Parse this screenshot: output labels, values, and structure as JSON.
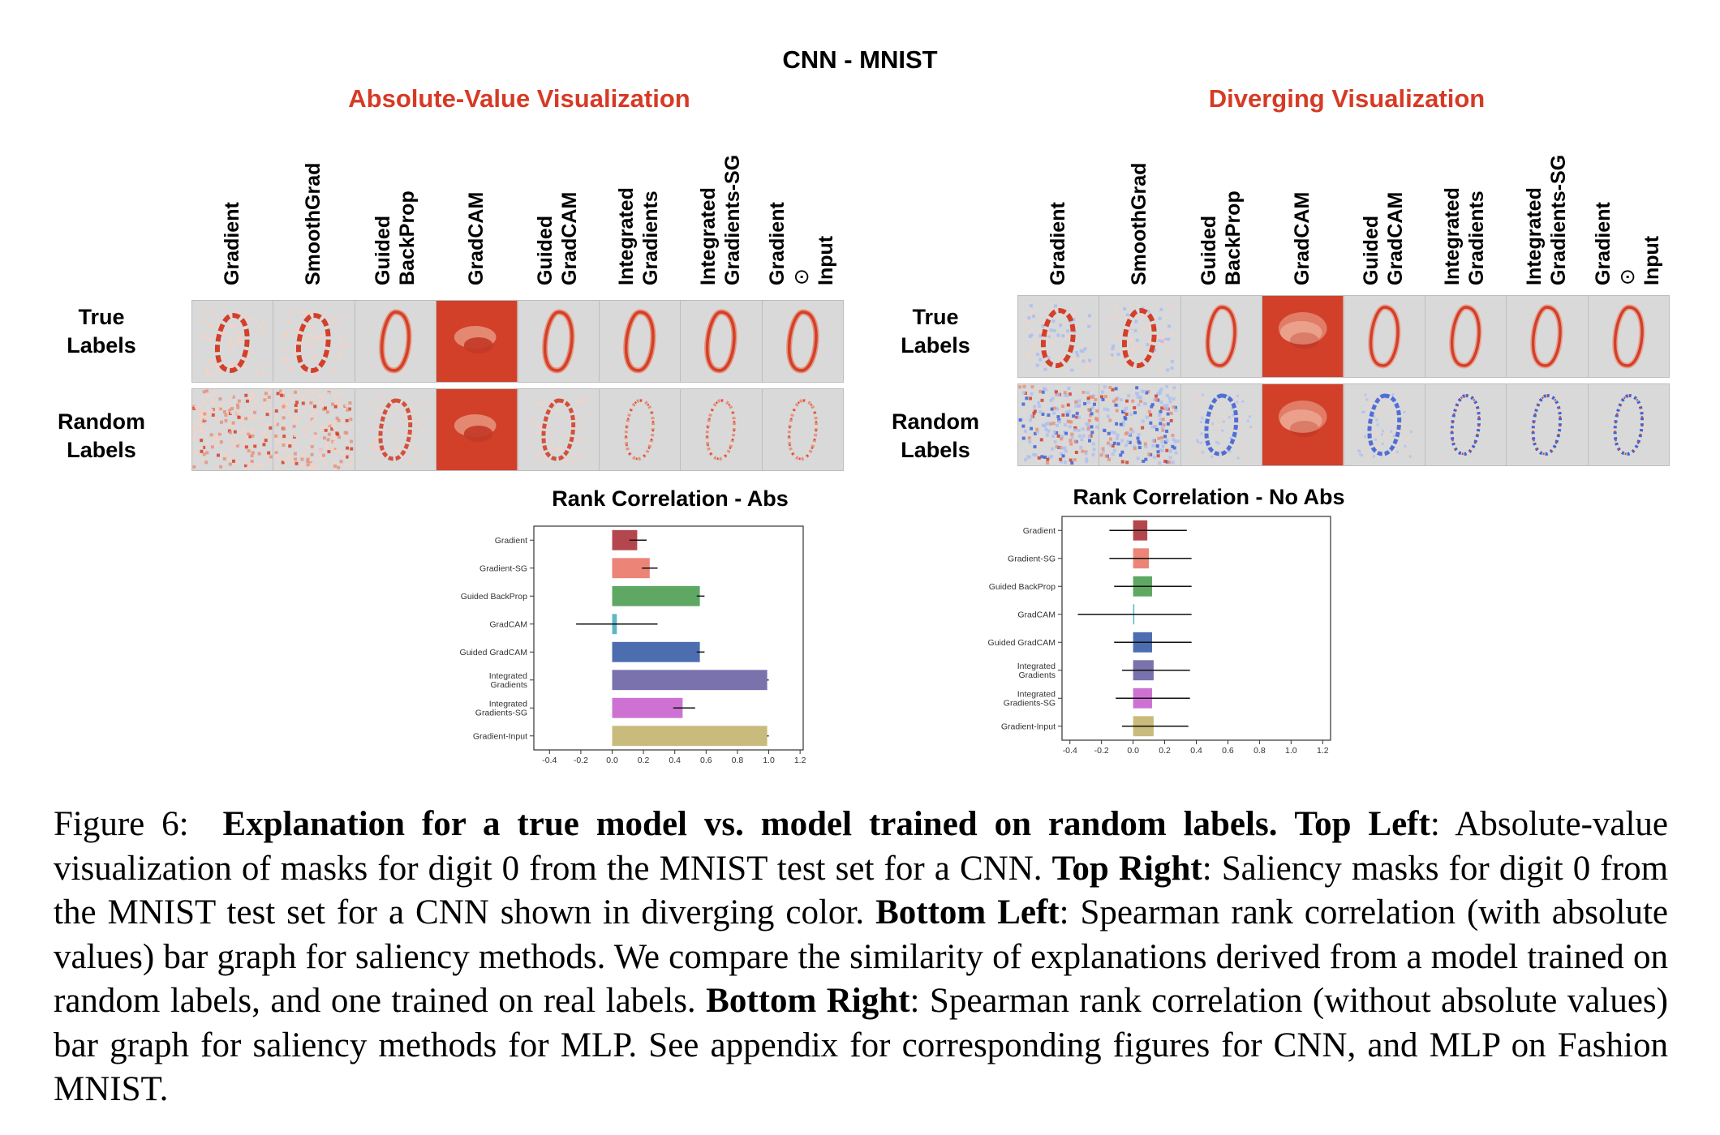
{
  "figure": {
    "main_title": "CNN - MNIST",
    "left_section_title": "Absolute-Value Visualization",
    "right_section_title": "Diverging Visualization",
    "left_columns": [
      [
        "Gradient"
      ],
      [
        "SmoothGrad"
      ],
      [
        "Guided",
        "BackProp"
      ],
      [
        "GradCAM"
      ],
      [
        "Guided",
        "GradCAM"
      ],
      [
        "Integrated",
        "Gradients"
      ],
      [
        "Integrated",
        "Gradients-SG"
      ],
      [
        "Gradient",
        "⊙",
        "Input"
      ]
    ],
    "right_columns": [
      [
        "Gradient"
      ],
      [
        "SmoothGrad"
      ],
      [
        "Guided",
        "BackProp"
      ],
      [
        "GradCAM"
      ],
      [
        "Guided",
        "GradCAM"
      ],
      [
        "Integrated",
        "Gradients"
      ],
      [
        "Integrated",
        "Gradients-SG"
      ],
      [
        "Gradient",
        "⊙",
        "Input"
      ]
    ],
    "rows": [
      [
        "True",
        "Labels"
      ],
      [
        "Random",
        "Labels"
      ]
    ],
    "palette": {
      "red": "#d2402a",
      "mid_red": "#e8917a",
      "light": "#f2d2c6",
      "blue": "#3f63d6",
      "light_blue": "#aebfee"
    }
  },
  "chart_data": [
    {
      "type": "bar",
      "title": "Rank Correlation - Abs",
      "orientation": "horizontal",
      "categories": [
        "Gradient",
        "Gradient-SG",
        "Guided BackProp",
        "GradCAM",
        "Guided GradCAM",
        "Integrated Gradients",
        "Integrated Gradients-SG",
        "Gradient-Input"
      ],
      "category_lines": [
        [
          "Gradient"
        ],
        [
          "Gradient-SG"
        ],
        [
          "Guided BackProp"
        ],
        [
          "GradCAM"
        ],
        [
          "Guided GradCAM"
        ],
        [
          "Integrated",
          "Gradients"
        ],
        [
          "Integrated",
          "Gradients-SG"
        ],
        [
          "Gradient-Input"
        ]
      ],
      "values": [
        0.16,
        0.24,
        0.56,
        0.03,
        0.56,
        0.99,
        0.45,
        0.99
      ],
      "err_low": [
        0.11,
        0.19,
        0.54,
        -0.23,
        0.54,
        0.99,
        0.39,
        0.99
      ],
      "err_high": [
        0.22,
        0.29,
        0.59,
        0.29,
        0.59,
        1.0,
        0.53,
        1.0
      ],
      "colors": [
        "#b4474e",
        "#ec8578",
        "#5ea864",
        "#60b5c5",
        "#4c6db0",
        "#7a72ad",
        "#cd72d3",
        "#c9bb7c"
      ],
      "xlim": [
        -0.5,
        1.22
      ],
      "xticks": [
        "-0.4",
        "-0.2",
        "0.0",
        "0.2",
        "0.4",
        "0.6",
        "0.8",
        "1.0",
        "1.2"
      ],
      "xtick_values": [
        -0.4,
        -0.2,
        0.0,
        0.2,
        0.4,
        0.6,
        0.8,
        1.0,
        1.2
      ]
    },
    {
      "type": "bar",
      "title": "Rank Correlation - No Abs",
      "orientation": "horizontal",
      "categories": [
        "Gradient",
        "Gradient-SG",
        "Guided BackProp",
        "GradCAM",
        "Guided GradCAM",
        "Integrated Gradients",
        "Integrated Gradients-SG",
        "Gradient-Input"
      ],
      "category_lines": [
        [
          "Gradient"
        ],
        [
          "Gradient-SG"
        ],
        [
          "Guided BackProp"
        ],
        [
          "GradCAM"
        ],
        [
          "Guided GradCAM"
        ],
        [
          "Integrated",
          "Gradients"
        ],
        [
          "Integrated",
          "Gradients-SG"
        ],
        [
          "Gradient-Input"
        ]
      ],
      "values": [
        0.09,
        0.1,
        0.12,
        0.005,
        0.12,
        0.13,
        0.12,
        0.13
      ],
      "err_low": [
        -0.15,
        -0.15,
        -0.12,
        -0.35,
        -0.12,
        -0.07,
        -0.11,
        -0.07
      ],
      "err_high": [
        0.34,
        0.37,
        0.37,
        0.37,
        0.37,
        0.36,
        0.36,
        0.35
      ],
      "colors": [
        "#b4474e",
        "#ec8578",
        "#5ea864",
        "#60b5c5",
        "#4c6db0",
        "#7a72ad",
        "#cd72d3",
        "#c9bb7c"
      ],
      "xlim": [
        -0.45,
        1.25
      ],
      "xticks": [
        "-0.4",
        "-0.2",
        "0.0",
        "0.2",
        "0.4",
        "0.6",
        "0.8",
        "1.0",
        "1.2"
      ],
      "xtick_values": [
        -0.4,
        -0.2,
        0.0,
        0.2,
        0.4,
        0.6,
        0.8,
        1.0,
        1.2
      ]
    }
  ],
  "caption": {
    "label": "Figure 6:",
    "bold_lead": "Explanation for a true model vs. model trained on random labels.",
    "tl_label": "Top Left",
    "tl_text": ": Absolute-value visualization of masks for digit 0 from the MNIST test set for a CNN.",
    "tr_label": "Top Right",
    "tr_text": ": Saliency masks for digit 0 from the MNIST test set for a CNN shown in diverging color.",
    "bl_label": "Bottom Left",
    "bl_text": ": Spearman rank correlation (with absolute values) bar graph for saliency methods. We compare the similarity of explanations derived from a model trained on random labels, and one trained on real labels.",
    "br_label": "Bottom Right",
    "br_text": ": Spearman rank correlation (without absolute values) bar graph for saliency methods for MLP. See appendix for corresponding figures for CNN, and MLP on Fashion MNIST."
  }
}
